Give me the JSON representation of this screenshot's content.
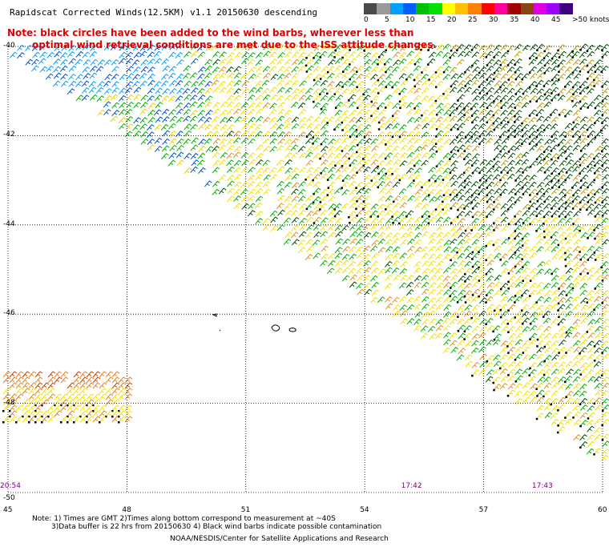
{
  "title": "Rapidscat Corrected Winds(12.5KM) v1.1 20150630 descending",
  "note_line1": "Note: black circles have been added to the wind barbs, wherever less than",
  "note_line2": "optimal wind retrieval conditions are met due to the ISS attitude changes.",
  "legend": {
    "labels": [
      "0",
      "5",
      "10",
      "15",
      "20",
      "25",
      "30",
      "35",
      "40",
      "45",
      ">50 knots"
    ],
    "colors": [
      "#4a4a4a",
      "#9a9a9a",
      "#00a0ff",
      "#0060ff",
      "#00c000",
      "#00e000",
      "#ffff00",
      "#ffc000",
      "#ff8000",
      "#ff0000",
      "#ff00a0",
      "#a00000",
      "#8b4513",
      "#e000e0",
      "#a000ff",
      "#400080"
    ]
  },
  "lat_labels": [
    {
      "text": "-40",
      "lat": -40
    },
    {
      "text": "-42",
      "lat": -42
    },
    {
      "text": "-44",
      "lat": -44
    },
    {
      "text": "-46",
      "lat": -46
    },
    {
      "text": "-48",
      "lat": -48
    },
    {
      "text": "-50",
      "lat": -50
    }
  ],
  "lon_labels": [
    {
      "text": "45",
      "lon": 45
    },
    {
      "text": "48",
      "lon": 48
    },
    {
      "text": "51",
      "lon": 51
    },
    {
      "text": "54",
      "lon": 54
    },
    {
      "text": "57",
      "lon": 57
    },
    {
      "text": "60",
      "lon": 60
    }
  ],
  "times": [
    {
      "text": "20:54",
      "lon": 45
    },
    {
      "text": "17:42",
      "lon": 55
    },
    {
      "text": "17:43",
      "lon": 58.3
    }
  ],
  "footer_line1": "Note: 1) Times are GMT 2)Times along bottom correspond to measurement at ~40S",
  "footer_line2": "3)Data buffer is 22 hrs from 20150630 4) Black wind barbs indicate possible contamination",
  "footer_line3": "NOAA/NESDIS/Center for Satellite Applications and Research",
  "map_extent": {
    "lon_min": 45,
    "lon_max": 60,
    "lat_min": -50,
    "lat_max": -40
  }
}
